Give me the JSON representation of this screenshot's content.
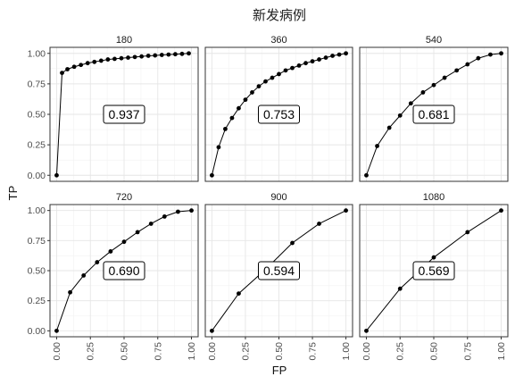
{
  "chart_data": {
    "type": "line",
    "title": "新发病例",
    "xlabel": "FP",
    "ylabel": "TP",
    "xlim": [
      0,
      1
    ],
    "ylim": [
      0,
      1
    ],
    "x_ticks": [
      "0.00",
      "0.25",
      "0.50",
      "0.75",
      "1.00"
    ],
    "y_ticks": [
      "0.00",
      "0.25",
      "0.50",
      "0.75",
      "1.00"
    ],
    "grid": true,
    "panels": [
      {
        "label": "180",
        "auc": "0.937",
        "x": [
          0.0,
          0.04,
          0.08,
          0.13,
          0.18,
          0.23,
          0.28,
          0.33,
          0.38,
          0.43,
          0.48,
          0.53,
          0.58,
          0.63,
          0.68,
          0.73,
          0.78,
          0.83,
          0.88,
          0.93,
          0.98
        ],
        "y": [
          0.0,
          0.84,
          0.87,
          0.89,
          0.905,
          0.92,
          0.93,
          0.94,
          0.95,
          0.955,
          0.96,
          0.965,
          0.97,
          0.975,
          0.98,
          0.983,
          0.987,
          0.99,
          0.993,
          0.996,
          1.0
        ]
      },
      {
        "label": "360",
        "auc": "0.753",
        "x": [
          0.0,
          0.05,
          0.1,
          0.15,
          0.2,
          0.25,
          0.3,
          0.35,
          0.4,
          0.45,
          0.5,
          0.55,
          0.6,
          0.65,
          0.7,
          0.75,
          0.8,
          0.85,
          0.9,
          0.95,
          1.0
        ],
        "y": [
          0.0,
          0.23,
          0.38,
          0.47,
          0.55,
          0.62,
          0.68,
          0.73,
          0.77,
          0.8,
          0.83,
          0.86,
          0.88,
          0.9,
          0.92,
          0.935,
          0.95,
          0.965,
          0.98,
          0.99,
          1.0
        ]
      },
      {
        "label": "540",
        "auc": "0.681",
        "x": [
          0.0,
          0.08,
          0.17,
          0.25,
          0.33,
          0.42,
          0.5,
          0.58,
          0.67,
          0.75,
          0.83,
          0.92,
          1.0
        ],
        "y": [
          0.0,
          0.24,
          0.39,
          0.49,
          0.59,
          0.68,
          0.74,
          0.8,
          0.86,
          0.91,
          0.96,
          0.99,
          1.0
        ]
      },
      {
        "label": "720",
        "auc": "0.690",
        "x": [
          0.0,
          0.1,
          0.2,
          0.3,
          0.4,
          0.5,
          0.6,
          0.7,
          0.8,
          0.9,
          1.0
        ],
        "y": [
          0.0,
          0.32,
          0.46,
          0.57,
          0.66,
          0.74,
          0.82,
          0.89,
          0.95,
          0.99,
          1.0
        ]
      },
      {
        "label": "900",
        "auc": "0.594",
        "x": [
          0.0,
          0.2,
          0.4,
          0.6,
          0.8,
          1.0
        ],
        "y": [
          0.0,
          0.31,
          0.51,
          0.73,
          0.89,
          1.0
        ]
      },
      {
        "label": "1080",
        "auc": "0.569",
        "x": [
          0.0,
          0.25,
          0.5,
          0.75,
          1.0
        ],
        "y": [
          0.0,
          0.35,
          0.61,
          0.82,
          1.0
        ]
      }
    ]
  }
}
